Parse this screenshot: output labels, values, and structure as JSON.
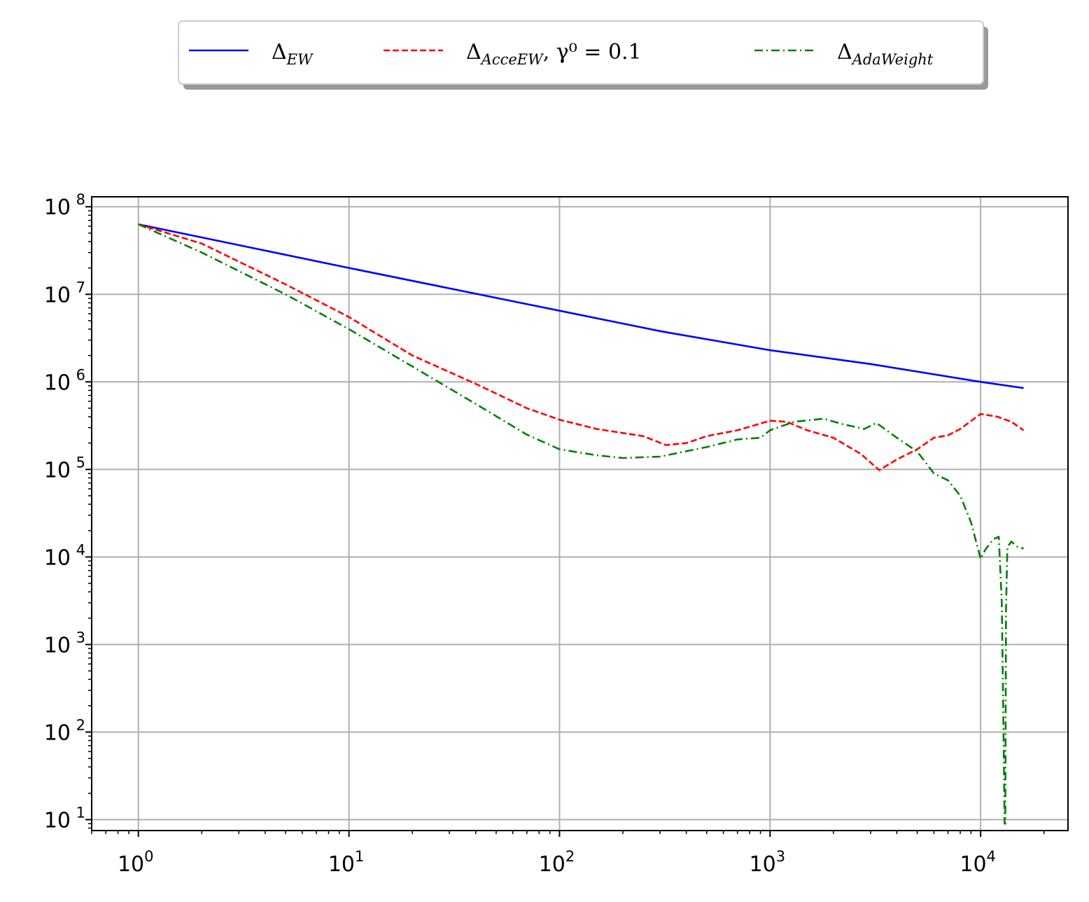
{
  "chart_data": {
    "type": "line",
    "x_scale": "log",
    "y_scale": "log",
    "xlim": [
      0.6,
      26000
    ],
    "ylim": [
      7.5,
      130000000
    ],
    "grid": true,
    "legend_position": "top-center, outside plot",
    "x_ticks": [
      {
        "value": 1,
        "base": "10",
        "exp": "0"
      },
      {
        "value": 10,
        "base": "10",
        "exp": "1"
      },
      {
        "value": 100,
        "base": "10",
        "exp": "2"
      },
      {
        "value": 1000,
        "base": "10",
        "exp": "3"
      },
      {
        "value": 10000,
        "base": "10",
        "exp": "4"
      }
    ],
    "y_ticks": [
      {
        "value": 10,
        "base": "10",
        "exp": "1"
      },
      {
        "value": 100,
        "base": "10",
        "exp": "2"
      },
      {
        "value": 1000,
        "base": "10",
        "exp": "3"
      },
      {
        "value": 10000,
        "base": "10",
        "exp": "4"
      },
      {
        "value": 100000,
        "base": "10",
        "exp": "5"
      },
      {
        "value": 1000000,
        "base": "10",
        "exp": "6"
      },
      {
        "value": 10000000,
        "base": "10",
        "exp": "7"
      },
      {
        "value": 100000000,
        "base": "10",
        "exp": "8"
      }
    ],
    "series": [
      {
        "name": "Δ_EW",
        "legend": {
          "symbol": "Δ",
          "sub": "EW",
          "rest": ""
        },
        "color": "#0000ff",
        "dash": "solid",
        "points": [
          [
            1,
            63000000
          ],
          [
            10,
            20000000
          ],
          [
            100,
            6500000
          ],
          [
            300,
            3800000
          ],
          [
            1000,
            2300000
          ],
          [
            3000,
            1600000
          ],
          [
            10000,
            1000000
          ],
          [
            16000,
            850000
          ]
        ]
      },
      {
        "name": "Δ_AcceEW, γ⁰ = 0.1",
        "legend": {
          "symbol": "Δ",
          "sub": "AcceEW",
          "rest": ", γ⁰ = 0.1"
        },
        "color": "#ff0000",
        "dash": "dashed",
        "points": [
          [
            1,
            63000000
          ],
          [
            2,
            38000000
          ],
          [
            5,
            13000000
          ],
          [
            10,
            5500000
          ],
          [
            20,
            2000000
          ],
          [
            40,
            950000
          ],
          [
            70,
            500000
          ],
          [
            100,
            370000
          ],
          [
            150,
            290000
          ],
          [
            250,
            240000
          ],
          [
            320,
            190000
          ],
          [
            400,
            200000
          ],
          [
            500,
            240000
          ],
          [
            700,
            280000
          ],
          [
            1000,
            360000
          ],
          [
            1200,
            350000
          ],
          [
            1500,
            280000
          ],
          [
            2000,
            230000
          ],
          [
            2700,
            150000
          ],
          [
            3300,
            98000
          ],
          [
            4000,
            130000
          ],
          [
            5000,
            170000
          ],
          [
            6000,
            230000
          ],
          [
            7000,
            245000
          ],
          [
            8000,
            290000
          ],
          [
            10000,
            430000
          ],
          [
            12000,
            400000
          ],
          [
            14000,
            350000
          ],
          [
            16000,
            280000
          ]
        ]
      },
      {
        "name": "Δ_AdaWeight",
        "legend": {
          "symbol": "Δ",
          "sub": "AdaWeight",
          "rest": ""
        },
        "color": "#008000",
        "dash": "dashdot",
        "points": [
          [
            1,
            63000000
          ],
          [
            2,
            30000000
          ],
          [
            5,
            10000000
          ],
          [
            10,
            4000000
          ],
          [
            20,
            1500000
          ],
          [
            40,
            560000
          ],
          [
            70,
            250000
          ],
          [
            100,
            170000
          ],
          [
            150,
            145000
          ],
          [
            200,
            135000
          ],
          [
            300,
            140000
          ],
          [
            500,
            180000
          ],
          [
            700,
            220000
          ],
          [
            900,
            230000
          ],
          [
            1000,
            280000
          ],
          [
            1300,
            350000
          ],
          [
            1800,
            380000
          ],
          [
            2200,
            330000
          ],
          [
            2800,
            290000
          ],
          [
            3200,
            340000
          ],
          [
            4000,
            230000
          ],
          [
            5000,
            160000
          ],
          [
            6000,
            90000
          ],
          [
            7000,
            75000
          ],
          [
            8000,
            50000
          ],
          [
            9000,
            25000
          ],
          [
            10000,
            9500
          ],
          [
            10500,
            12000
          ],
          [
            11500,
            16000
          ],
          [
            12200,
            17000
          ],
          [
            12600,
            3000
          ],
          [
            12800,
            200
          ],
          [
            13000,
            9
          ],
          [
            13100,
            9
          ],
          [
            13200,
            2500
          ],
          [
            13400,
            13000
          ],
          [
            14000,
            15000
          ],
          [
            15000,
            13000
          ],
          [
            16000,
            12500
          ]
        ]
      }
    ]
  }
}
